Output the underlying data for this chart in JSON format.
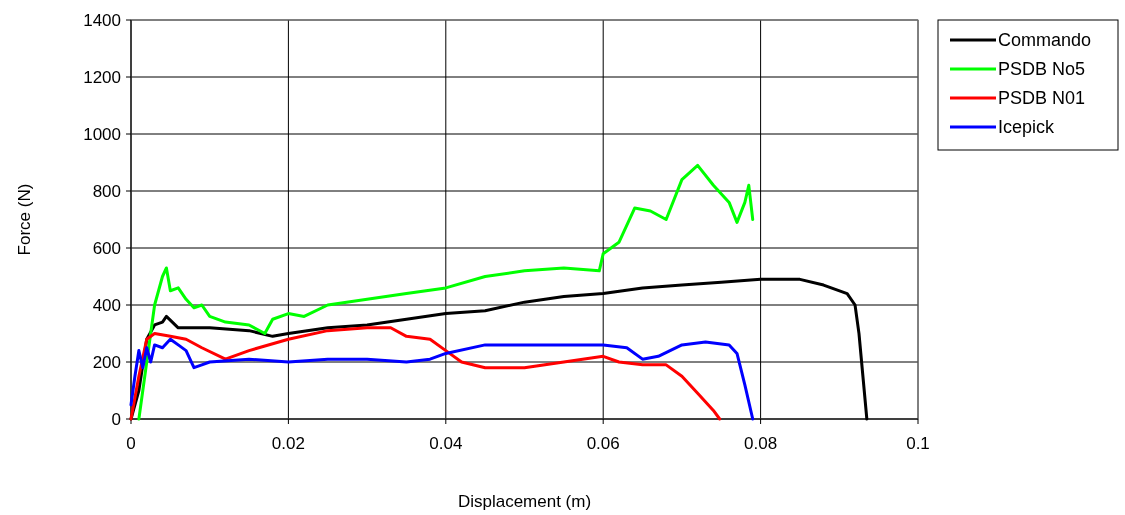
{
  "chart_data": {
    "type": "line",
    "xlabel": "Displacement (m)",
    "ylabel": "Force (N)",
    "xlim": [
      0,
      0.1
    ],
    "xticks": [
      0,
      0.02,
      0.04,
      0.06,
      0.08,
      0.1
    ],
    "ylim": [
      0,
      1400
    ],
    "yticks": [
      0,
      200,
      400,
      600,
      800,
      1000,
      1200,
      1400
    ],
    "grid": true,
    "legend": "top right",
    "marker": "none",
    "line_style": "solid",
    "series": [
      {
        "name": "Commando",
        "color": "#000000",
        "x": [
          0,
          0.001,
          0.002,
          0.003,
          0.004,
          0.0045,
          0.006,
          0.01,
          0.015,
          0.018,
          0.02,
          0.025,
          0.03,
          0.035,
          0.04,
          0.045,
          0.05,
          0.055,
          0.06,
          0.065,
          0.07,
          0.075,
          0.08,
          0.085,
          0.088,
          0.091,
          0.092,
          0.0925,
          0.093,
          0.0935
        ],
        "values": [
          0,
          100,
          280,
          330,
          340,
          360,
          320,
          320,
          310,
          290,
          300,
          320,
          330,
          350,
          370,
          380,
          410,
          430,
          440,
          460,
          470,
          480,
          490,
          490,
          470,
          440,
          400,
          300,
          150,
          0
        ]
      },
      {
        "name": "PSDB No5",
        "color": "#00ff00",
        "x": [
          0.001,
          0.002,
          0.003,
          0.004,
          0.0045,
          0.005,
          0.006,
          0.007,
          0.008,
          0.009,
          0.01,
          0.012,
          0.015,
          0.017,
          0.018,
          0.02,
          0.022,
          0.025,
          0.03,
          0.035,
          0.04,
          0.045,
          0.05,
          0.055,
          0.0595,
          0.06,
          0.062,
          0.064,
          0.066,
          0.068,
          0.07,
          0.072,
          0.074,
          0.076,
          0.077,
          0.078,
          0.0785,
          0.079
        ],
        "values": [
          0,
          200,
          400,
          500,
          530,
          450,
          460,
          420,
          390,
          400,
          360,
          340,
          330,
          300,
          350,
          370,
          360,
          400,
          420,
          440,
          460,
          500,
          520,
          530,
          520,
          580,
          620,
          740,
          730,
          700,
          840,
          890,
          820,
          760,
          690,
          760,
          820,
          700
        ]
      },
      {
        "name": "PSDB N01",
        "color": "#ff0000",
        "x": [
          0,
          0.001,
          0.002,
          0.003,
          0.005,
          0.007,
          0.009,
          0.012,
          0.015,
          0.02,
          0.025,
          0.03,
          0.033,
          0.035,
          0.038,
          0.04,
          0.042,
          0.045,
          0.05,
          0.055,
          0.06,
          0.062,
          0.065,
          0.068,
          0.07,
          0.072,
          0.074,
          0.0748
        ],
        "values": [
          0,
          150,
          280,
          300,
          290,
          280,
          250,
          210,
          240,
          280,
          310,
          320,
          320,
          290,
          280,
          240,
          200,
          180,
          180,
          200,
          220,
          200,
          190,
          190,
          150,
          90,
          30,
          0
        ]
      },
      {
        "name": "Icepick",
        "color": "#0000ff",
        "x": [
          0,
          0.0005,
          0.001,
          0.0015,
          0.002,
          0.0025,
          0.003,
          0.004,
          0.005,
          0.006,
          0.007,
          0.008,
          0.009,
          0.01,
          0.015,
          0.02,
          0.025,
          0.03,
          0.035,
          0.038,
          0.04,
          0.045,
          0.05,
          0.055,
          0.06,
          0.063,
          0.065,
          0.067,
          0.07,
          0.073,
          0.076,
          0.077,
          0.078,
          0.079
        ],
        "values": [
          50,
          150,
          240,
          180,
          250,
          200,
          260,
          250,
          280,
          260,
          240,
          180,
          190,
          200,
          210,
          200,
          210,
          210,
          200,
          210,
          230,
          260,
          260,
          260,
          260,
          250,
          210,
          220,
          260,
          270,
          260,
          230,
          120,
          0
        ]
      }
    ]
  }
}
